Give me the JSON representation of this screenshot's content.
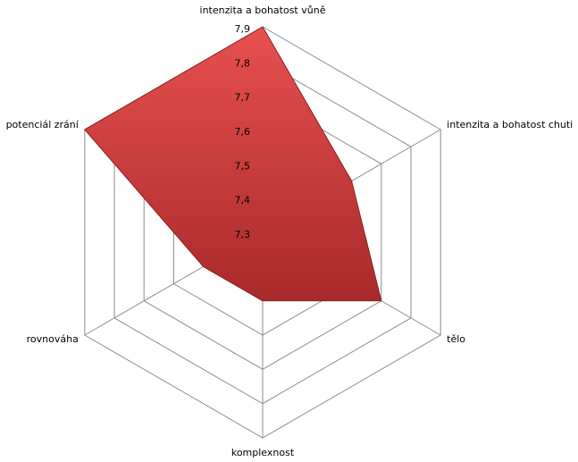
{
  "chart_data": {
    "type": "radar",
    "categories": [
      "intenzita a bohatost vůně",
      "intenzita a bohatost chuti",
      "tělo",
      "komplexnost",
      "rovnováha",
      "potenciál zrání"
    ],
    "values": [
      7.9,
      7.6,
      7.7,
      7.5,
      7.5,
      7.9
    ],
    "color": "#c83a3a",
    "rlim": [
      7.3,
      7.9
    ],
    "rticks": [
      {
        "value": 7.3,
        "label": "7,3"
      },
      {
        "value": 7.4,
        "label": "7,4"
      },
      {
        "value": 7.5,
        "label": "7,5"
      },
      {
        "value": 7.6,
        "label": "7,6"
      },
      {
        "value": 7.7,
        "label": "7,7"
      },
      {
        "value": 7.8,
        "label": "7,8"
      },
      {
        "value": 7.9,
        "label": "7,9"
      }
    ],
    "grid": true
  }
}
